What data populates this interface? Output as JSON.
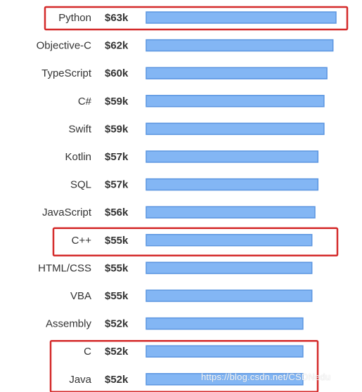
{
  "chart_data": {
    "type": "bar",
    "orientation": "horizontal",
    "categories": [
      "Python",
      "Objective-C",
      "TypeScript",
      "C#",
      "Swift",
      "Kotlin",
      "SQL",
      "JavaScript",
      "C++",
      "HTML/CSS",
      "VBA",
      "Assembly",
      "C",
      "Java"
    ],
    "values": [
      63,
      62,
      60,
      59,
      59,
      57,
      57,
      56,
      55,
      55,
      55,
      52,
      52,
      52
    ],
    "value_labels": [
      "$63k",
      "$62k",
      "$60k",
      "$59k",
      "$59k",
      "$57k",
      "$57k",
      "$56k",
      "$55k",
      "$55k",
      "$55k",
      "$52k",
      "$52k",
      "$52k"
    ],
    "unit": "$k",
    "bar_color": "#83b6f4",
    "highlighted_groups": [
      [
        "Python"
      ],
      [
        "C++"
      ],
      [
        "C",
        "Java"
      ]
    ],
    "highlight_color": "#d42a2a"
  },
  "watermark": "https://blog.csdn.net/CSDNedu"
}
